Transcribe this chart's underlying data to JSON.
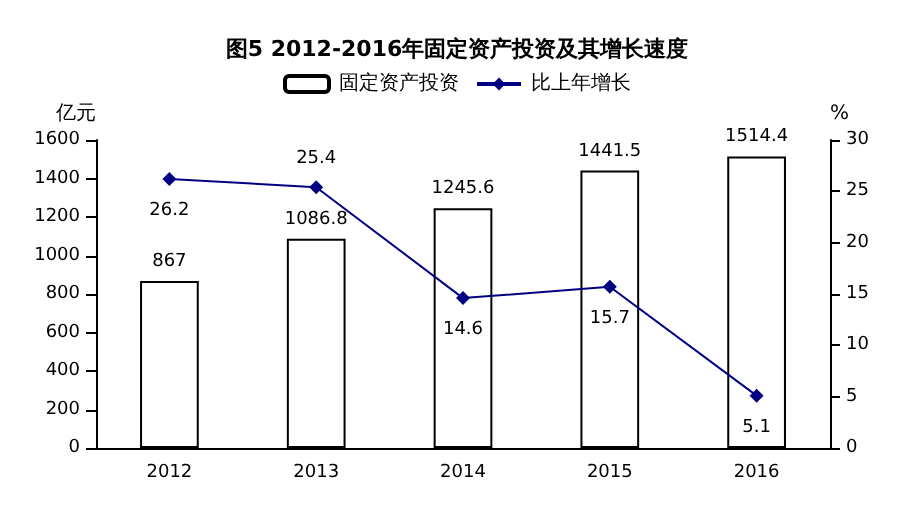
{
  "chart_data": {
    "type": "bar",
    "title": "图5 2012-2016年固定资产投资及其增长速度",
    "ylabel": "亿元",
    "y2label": "%",
    "categories": [
      "2012",
      "2013",
      "2014",
      "2015",
      "2016"
    ],
    "series": [
      {
        "name": "固定资产投资",
        "color": "#ffffff",
        "values": [
          867,
          1086.8,
          1245.6,
          1441.5,
          1514.4
        ]
      },
      {
        "name": "比上年增长",
        "type": "line",
        "axis": "y2",
        "color": "#000080",
        "values": [
          26.2,
          25.4,
          14.6,
          15.7,
          5.1
        ]
      }
    ],
    "ylim": [
      0,
      1600
    ],
    "yticks": [
      0,
      200,
      400,
      600,
      800,
      1000,
      1200,
      1400,
      1600
    ],
    "y2lim": [
      0,
      30
    ],
    "y2ticks": [
      0,
      5,
      10,
      15,
      20,
      25,
      30
    ],
    "data_labels": true,
    "legend": "top",
    "marker": "diamond",
    "grid": false
  }
}
